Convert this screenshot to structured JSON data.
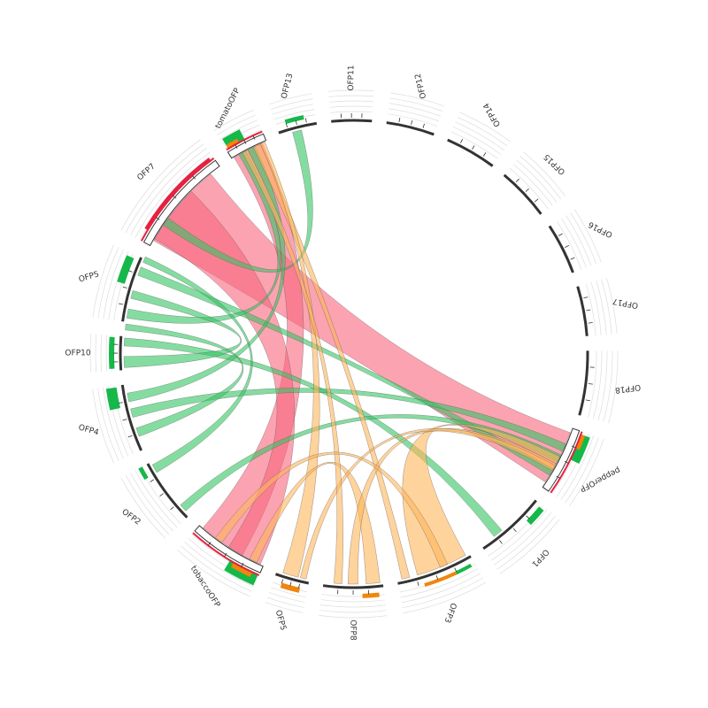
{
  "diagram": {
    "type": "chord",
    "colors": {
      "red": "#e8203f",
      "red_fill": "#f8657d",
      "green": "#16b84a",
      "green_fill": "#34c463",
      "orange": "#f0860c",
      "orange_fill": "#ffb65a",
      "axis": "#333333"
    },
    "segments": [
      {
        "label": "tomatoOFP",
        "group": "red",
        "start": 148.0,
        "end": 157.6
      },
      {
        "label": "OFP13",
        "group": "green",
        "start": 161.2,
        "end": 170.8
      },
      {
        "label": "OFP11",
        "group": "plain",
        "start": 174.4,
        "end": 184.4
      },
      {
        "label": "OFP12",
        "group": "plain",
        "start": 188.0,
        "end": 200.0
      },
      {
        "label": "OFP14",
        "group": "plain",
        "start": 203.6,
        "end": 216.4
      },
      {
        "label": "OFP15",
        "group": "plain",
        "start": 220.0,
        "end": 233.2
      },
      {
        "label": "OFP16",
        "group": "plain",
        "start": 236.8,
        "end": 249.6
      },
      {
        "label": "OFP17",
        "group": "plain",
        "start": 253.2,
        "end": 265.6
      },
      {
        "label": "OFP18",
        "group": "plain",
        "start": 269.2,
        "end": 285.2
      },
      {
        "label": "pepperOFP",
        "group": "red",
        "start": 288.8,
        "end": 305.2
      },
      {
        "label": "OFP1",
        "group": "green",
        "start": 308.8,
        "end": 326.4
      },
      {
        "label": "OFP3",
        "group": "orange",
        "start": 330.0,
        "end": 349.2
      },
      {
        "label": "OFP8",
        "group": "orange",
        "start": 352.8,
        "end": 7.6
      },
      {
        "label": "OFP5",
        "group": "orange",
        "start": 11.2,
        "end": 19.6
      },
      {
        "label": "tobaccoOFP",
        "group": "red",
        "start": 23.2,
        "end": 42.0
      },
      {
        "label": "OFP2",
        "group": "green",
        "start": 45.6,
        "end": 62.0
      },
      {
        "label": "OFP4",
        "group": "green",
        "start": 65.6,
        "end": 82.4
      },
      {
        "label": "OFP10",
        "group": "green",
        "start": 86.0,
        "end": 94.4
      },
      {
        "label": "OFP5",
        "group": "green",
        "start": 98.0,
        "end": 114.4
      },
      {
        "label": "OFP7",
        "group": "red",
        "start": 118.0,
        "end": 144.4
      }
    ],
    "links": [
      {
        "color": "red",
        "a": [
          119.5,
          141.5
        ],
        "b": [
          290.0,
          303.8
        ]
      },
      {
        "color": "red",
        "a": [
          148.6,
          156.5
        ],
        "b": [
          29.0,
          41.0
        ]
      },
      {
        "color": "red",
        "a": [
          120.0,
          135.0
        ],
        "b": [
          24.0,
          33.0
        ]
      },
      {
        "color": "green",
        "a": [
          164.5,
          166.8
        ],
        "b": [
          124.0,
          126.2
        ]
      },
      {
        "color": "green",
        "a": [
          110.0,
          112.2
        ],
        "b": [
          300.0,
          301.8
        ]
      },
      {
        "color": "green",
        "a": [
          99.0,
          101.3
        ],
        "b": [
          150.0,
          152.0
        ]
      },
      {
        "color": "green",
        "a": [
          92.0,
          94.0
        ],
        "b": [
          320.0,
          322.5
        ]
      },
      {
        "color": "green",
        "a": [
          86.6,
          89.4
        ],
        "b": [
          104.0,
          106.0
        ]
      },
      {
        "color": "green",
        "a": [
          78.0,
          80.2
        ],
        "b": [
          152.5,
          154.5
        ]
      },
      {
        "color": "green",
        "a": [
          74.0,
          76.2
        ],
        "b": [
          293.0,
          295.0
        ]
      },
      {
        "color": "green",
        "a": [
          69.0,
          71.2
        ],
        "b": [
          96.0,
          97.5
        ]
      },
      {
        "color": "green",
        "a": [
          59.0,
          61.2
        ],
        "b": [
          113.5,
          115.0
        ]
      },
      {
        "color": "green",
        "a": [
          47.0,
          49.0
        ],
        "b": [
          296.0,
          298.0
        ]
      },
      {
        "color": "orange",
        "a": [
          331.0,
          344.0
        ],
        "b": [
          296.5,
          298.5
        ]
      },
      {
        "color": "orange",
        "a": [
          154.0,
          156.0
        ],
        "b": [
          346.0,
          348.0
        ]
      },
      {
        "color": "orange",
        "a": [
          156.0,
          157.2
        ],
        "b": [
          14.0,
          18.0
        ]
      },
      {
        "color": "orange",
        "a": [
          353.5,
          357.0
        ],
        "b": [
          25.0,
          27.0
        ]
      },
      {
        "color": "orange",
        "a": [
          359.0,
          1.5
        ],
        "b": [
          298.5,
          300.0
        ]
      },
      {
        "color": "orange",
        "a": [
          12.0,
          13.5
        ],
        "b": [
          299.0,
          300.5
        ]
      },
      {
        "color": "orange",
        "a": [
          3.0,
          5.0
        ],
        "b": [
          151.0,
          152.5
        ]
      },
      {
        "color": "orange",
        "a": [
          336.0,
          338.0
        ],
        "b": [
          35.0,
          37.0
        ]
      }
    ],
    "track_bars": [
      {
        "start": 148.5,
        "end": 153.0,
        "color": "green",
        "h": 14
      },
      {
        "start": 148.5,
        "end": 151.5,
        "color": "orange",
        "h": 6
      },
      {
        "start": 163.5,
        "end": 168.0,
        "color": "green",
        "h": 5
      },
      {
        "start": 289.5,
        "end": 296.0,
        "color": "green",
        "h": 12
      },
      {
        "start": 289.5,
        "end": 293.0,
        "color": "orange",
        "h": 6
      },
      {
        "start": 309.5,
        "end": 314.0,
        "color": "green",
        "h": 7
      },
      {
        "start": 335.0,
        "end": 343.0,
        "color": "orange",
        "h": 4
      },
      {
        "start": 331.0,
        "end": 335.0,
        "color": "green",
        "h": 4
      },
      {
        "start": 354.0,
        "end": 358.0,
        "color": "orange",
        "h": 5
      },
      {
        "start": 13.0,
        "end": 17.5,
        "color": "orange",
        "h": 6
      },
      {
        "start": 23.5,
        "end": 31.0,
        "color": "green",
        "h": 14
      },
      {
        "start": 25.0,
        "end": 30.0,
        "color": "orange",
        "h": 7
      },
      {
        "start": 59.0,
        "end": 62.0,
        "color": "green",
        "h": 5
      },
      {
        "start": 77.0,
        "end": 82.0,
        "color": "green",
        "h": 12
      },
      {
        "start": 86.5,
        "end": 94.0,
        "color": "green",
        "h": 6
      },
      {
        "start": 107.0,
        "end": 113.5,
        "color": "green",
        "h": 9
      },
      {
        "start": 121.0,
        "end": 143.5,
        "color": "red",
        "h": 5
      }
    ]
  }
}
